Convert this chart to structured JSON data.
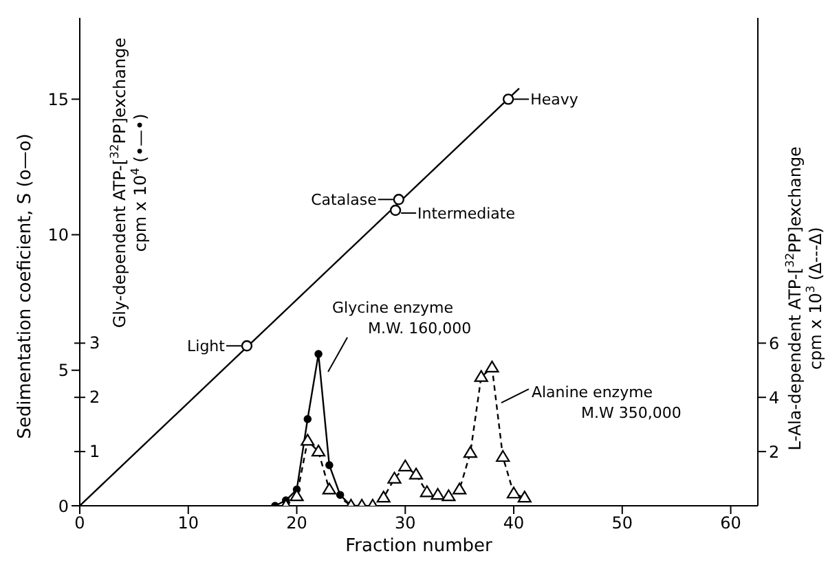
{
  "chart_data": {
    "type": "line",
    "xlabel": "Fraction number",
    "ylabel": "Sedimentation coeficient, S (o—o)",
    "y2label": "L-Ala-dependent ATP-[$^{32}$PP]exchange\ncpm x 10$^{3}$ (Δ---Δ)",
    "y3label": "Gly-dependent ATP-[$^{32}$PP]exchange\ncpm x 10$^{4}$ (•—•)",
    "xlim": [
      0,
      62.5
    ],
    "xticks": [
      0,
      10,
      20,
      30,
      40,
      50,
      60
    ],
    "ylim": [
      0,
      18
    ],
    "yticks": [
      0,
      5,
      10,
      15
    ],
    "y2lim": [
      0,
      18
    ],
    "y2ticks": [
      2,
      4,
      6
    ],
    "y3lim": [
      0,
      9
    ],
    "y3ticks": [
      1,
      2,
      3
    ],
    "series": [
      {
        "color": "#000000",
        "marker": "none",
        "line_style": "solid",
        "x": [
          0,
          40.5
        ],
        "values": [
          0,
          15.4
        ]
      },
      {
        "type": "scatter",
        "color": "#000000",
        "marker": "circle",
        "x": [
          15.4,
          29.4,
          29.1,
          39.5
        ],
        "values": [
          5.9,
          11.3,
          10.9,
          15.0
        ]
      },
      {
        "axis": "y3",
        "color": "#000000",
        "marker": "circle",
        "line_style": "solid",
        "x": [
          18,
          19,
          20,
          21,
          22,
          23,
          24,
          25
        ],
        "values": [
          0,
          0.1,
          0.3,
          1.6,
          2.8,
          0.75,
          0.2,
          0
        ]
      },
      {
        "axis": "y2",
        "color": "#000000",
        "marker": "triangle",
        "line_style": "dashed",
        "x": [
          19,
          20,
          21,
          22,
          23,
          25,
          26,
          27,
          28,
          29,
          30,
          31,
          32,
          33,
          34,
          35,
          36,
          37,
          38,
          39,
          40,
          41
        ],
        "values": [
          0,
          0.35,
          2.4,
          2.0,
          0.6,
          0,
          0,
          0,
          0.3,
          1.0,
          1.45,
          1.15,
          0.5,
          0.4,
          0.35,
          0.6,
          1.95,
          4.75,
          5.1,
          1.8,
          0.45,
          0.3
        ]
      }
    ],
    "annotations": [
      {
        "text": "Light",
        "x": 15.4,
        "y": 5.9
      },
      {
        "text": "Catalase",
        "x": 29.4,
        "y": 11.3
      },
      {
        "text": "Intermediate",
        "x": 29.1,
        "y": 10.9
      },
      {
        "text": "Heavy",
        "x": 39.5,
        "y": 15.0
      },
      {
        "text": "Glycine enzyme\nM.W. 160,000",
        "x": 22,
        "y": 5.6
      },
      {
        "text": "Alanine enzyme\nM.W 350,000",
        "x": 38.6,
        "y": 3.9
      }
    ]
  }
}
